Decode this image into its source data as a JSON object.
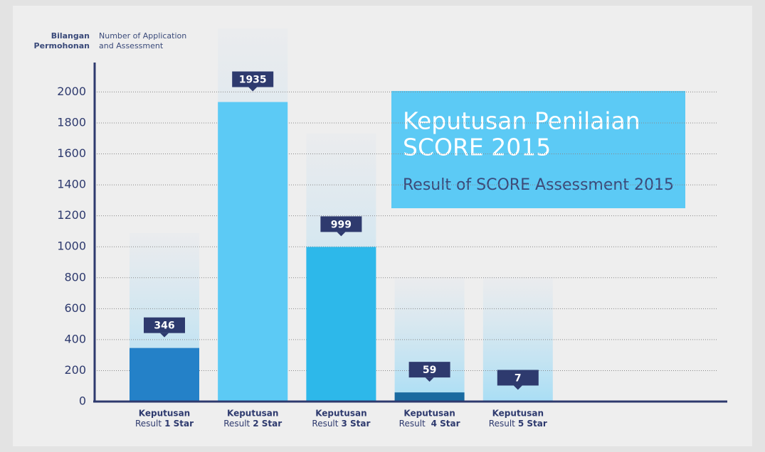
{
  "chart_data": {
    "type": "bar",
    "title": [
      "Keputusan Penilaian",
      "SCORE 2015"
    ],
    "subtitle": "Result of SCORE Assessment 2015",
    "y_label": {
      "ms": [
        "Bilangan",
        "Permohonan"
      ],
      "en": [
        "Number of Application",
        "and Assessment"
      ]
    },
    "categories": [
      {
        "line1": "Keputusan",
        "line2": "Result",
        "star": "1 Star"
      },
      {
        "line1": "Keputusan",
        "line2": "Result",
        "star": "2 Star"
      },
      {
        "line1": "Keputusan",
        "line2": "Result",
        "star": "3 Star"
      },
      {
        "line1": "Keputusan",
        "line2": "Result ",
        "star": "4 Star"
      },
      {
        "line1": "Keputusan",
        "line2": "Result",
        "star": "5 Star"
      }
    ],
    "values": [
      346,
      1935,
      999,
      59,
      7
    ],
    "colors": [
      "#2481c8",
      "#5ccaf5",
      "#2db8ea",
      "#1a6aa0",
      "#3e93aa"
    ],
    "ylim": [
      0,
      2190
    ],
    "yticks": [
      0,
      200,
      400,
      600,
      800,
      1000,
      1200,
      1400,
      1600,
      1800,
      2000
    ],
    "grid": true
  }
}
